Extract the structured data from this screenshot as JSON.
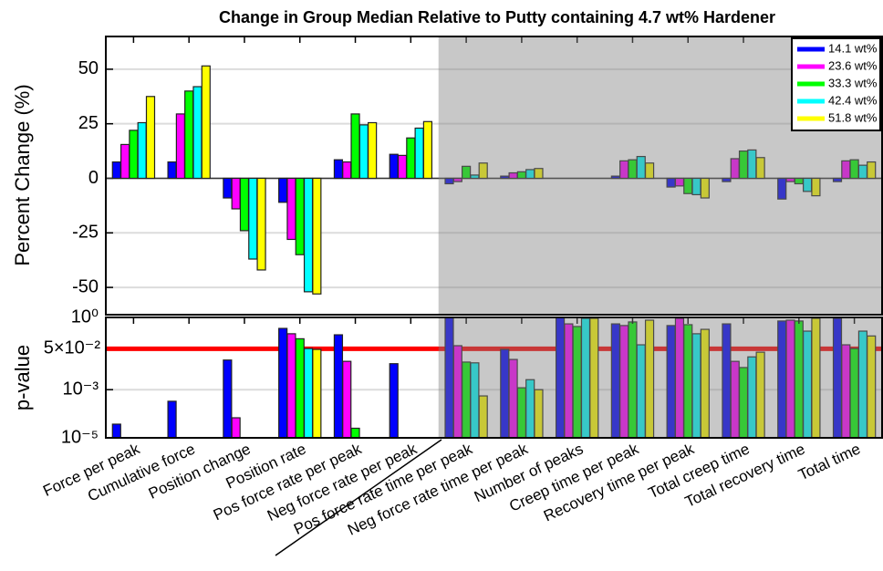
{
  "chart_data": [
    {
      "type": "bar",
      "title": "Change in Group Median Relative to Putty containing 4.7 wt% Hardener",
      "ylabel": "Percent Change (%)",
      "ylim": [
        -62.5,
        65
      ],
      "yticks": [
        -50,
        -25,
        0,
        25,
        50
      ],
      "grid": true,
      "legend": "upper right",
      "shaded_from": 6,
      "series": [
        {
          "name": "14.1 wt%",
          "color": "#0000ff",
          "values": [
            7.5,
            7.5,
            -9,
            -11,
            8.5,
            11,
            -2.5,
            1,
            0,
            1,
            -4,
            -1.5,
            -9.5,
            -1.5
          ]
        },
        {
          "name": "23.6 wt%",
          "color": "#ff00ff",
          "values": [
            15.5,
            29.5,
            -14,
            -28,
            7.5,
            10.5,
            -1.5,
            2.5,
            0,
            8,
            -3.5,
            9,
            -1.5,
            8
          ]
        },
        {
          "name": "33.3 wt%",
          "color": "#00ff00",
          "values": [
            22,
            40,
            -24,
            -35,
            29.5,
            18.5,
            5.5,
            3,
            0,
            8.5,
            -7,
            12.5,
            -2.5,
            8.5
          ]
        },
        {
          "name": "42.4 wt%",
          "color": "#00ffff",
          "values": [
            25.5,
            42,
            -37,
            -52,
            24.5,
            23,
            1.5,
            4,
            0,
            10,
            -7.5,
            13,
            -6,
            6
          ]
        },
        {
          "name": "51.8 wt%",
          "color": "#ffff00",
          "values": [
            37.5,
            51.5,
            -42,
            -53,
            25.5,
            26,
            7,
            4.5,
            0,
            7,
            -9,
            9.5,
            -8,
            7.5
          ]
        }
      ]
    },
    {
      "type": "bar",
      "ylabel": "p-value",
      "log_scale": true,
      "ylim": [
        1e-05,
        1
      ],
      "yticks": [
        {
          "value": 1e-05,
          "label": "10⁻⁵"
        },
        {
          "value": 0.001,
          "label": "10⁻³"
        },
        {
          "value": 1,
          "label": "10⁰"
        }
      ],
      "grid": true,
      "shaded_from": 6,
      "threshold": {
        "value": 0.05,
        "label": "5×10⁻²",
        "color": "#ff0000"
      },
      "categories": [
        "Force per peak",
        "Cumulative force",
        "Position change",
        "Position rate",
        "Pos force rate per peak",
        "Neg force rate per peak",
        "Pos force rate time per peak",
        "Neg force rate time per peak",
        "Number of peaks",
        "Creep time per peak",
        "Recovery time per peak",
        "Total creep time",
        "Total recovery time",
        "Total time"
      ],
      "series": [
        {
          "color": "#0000ff",
          "values": [
            3.7e-05,
            0.00033,
            0.017,
            0.35,
            0.19,
            0.012,
            0.96,
            0.047,
            1,
            0.54,
            0.46,
            0.54,
            0.71,
            0.92
          ]
        },
        {
          "color": "#ff00ff",
          "values": [
            1e-05,
            1e-05,
            6.8e-05,
            0.21,
            0.015,
            1e-05,
            0.067,
            0.018,
            0.54,
            0.46,
            0.92,
            0.015,
            0.77,
            0.073
          ]
        },
        {
          "color": "#00ff00",
          "values": [
            1e-05,
            1e-05,
            1e-05,
            0.13,
            2.5e-05,
            1e-05,
            0.014,
            0.0012,
            0.42,
            0.65,
            0.5,
            0.0083,
            0.71,
            0.051
          ]
        },
        {
          "color": "#00ffff",
          "values": [
            1e-05,
            1e-05,
            1e-05,
            0.051,
            1e-05,
            1e-05,
            0.013,
            0.0026,
            0.92,
            0.073,
            0.21,
            0.023,
            0.27,
            0.27
          ]
        },
        {
          "color": "#ffff00",
          "values": [
            1e-05,
            1e-05,
            1e-05,
            0.047,
            1e-05,
            1e-05,
            0.00055,
            0.001,
            0.92,
            0.77,
            0.32,
            0.036,
            0.92,
            0.17
          ]
        }
      ]
    }
  ]
}
